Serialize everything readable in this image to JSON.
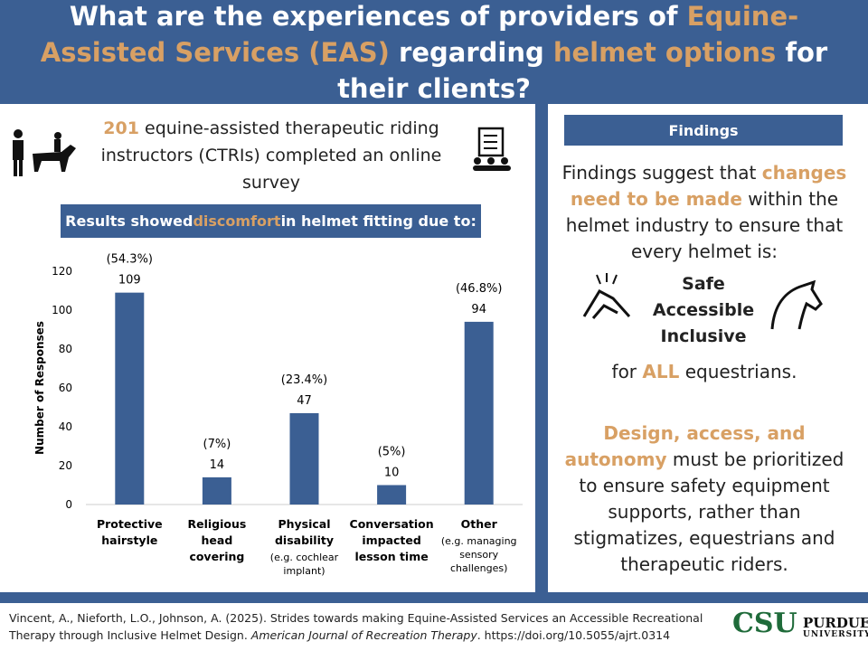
{
  "theme": {
    "primary_color": "#3b5f93",
    "accent_color": "#d8a064",
    "text_color": "#222222"
  },
  "header": {
    "title": {
      "segments": [
        {
          "text": "What are the experiences of providers of "
        },
        {
          "text": "Equine-Assisted Services (EAS)",
          "accent": true
        },
        {
          "text": " regarding "
        },
        {
          "text": "helmet options",
          "accent": true
        },
        {
          "text": " for their clients?"
        }
      ]
    }
  },
  "left_panel": {
    "intro": {
      "segments": [
        {
          "text": "201",
          "accent": true,
          "bold": true
        },
        {
          "text": " equine-assisted therapeutic riding instructors (CTRIs) completed an online survey"
        }
      ]
    },
    "banner": {
      "segments": [
        {
          "text": "Results showed "
        },
        {
          "text": "discomfort",
          "accent": true
        },
        {
          "text": " in helmet fitting due to:"
        }
      ]
    }
  },
  "chart_data": {
    "type": "bar",
    "y_label": "Number of Responses",
    "categories": [
      "Protective hairstyle",
      "Religious head covering",
      "Physical disability",
      "Conversation impacted lesson time",
      "Other"
    ],
    "category_notes": [
      null,
      null,
      "(e.g. cochlear implant)",
      null,
      "(e.g. managing sensory challenges)"
    ],
    "values": [
      109,
      14,
      47,
      10,
      94
    ],
    "percent_labels": [
      "(54.3%)",
      "(7%)",
      "(23.4%)",
      "(5%)",
      "(46.8%)"
    ],
    "color": "#3b5f93",
    "ylim": [
      0,
      120
    ],
    "yticks": [
      0,
      20,
      40,
      60,
      80,
      100,
      120
    ],
    "grid": false
  },
  "right_panel": {
    "heading": "Findings",
    "paragraph1": {
      "segments": [
        {
          "text": "Findings suggest that "
        },
        {
          "text": "changes need to be made",
          "accent": true,
          "bold": true
        },
        {
          "text": " within the helmet industry to ensure that every helmet is:"
        }
      ]
    },
    "qualities": [
      "Safe",
      "Accessible",
      "Inclusive"
    ],
    "paragraph2": {
      "segments": [
        {
          "text": "for "
        },
        {
          "text": "ALL",
          "accent": true,
          "bold": true
        },
        {
          "text": " equestrians."
        }
      ]
    },
    "paragraph3": {
      "segments": [
        {
          "text": "Design, access, and autonomy",
          "accent": true,
          "bold": true
        },
        {
          "text": " must be prioritized to ensure safety equipment supports, rather than stigmatizes, equestrians and therapeutic riders."
        }
      ]
    }
  },
  "footer": {
    "citation": {
      "segments": [
        {
          "text": "Vincent, A., Nieforth, L.O., Johnson, A. (2025). Strides towards making Equine-Assisted Services an Accessible Recreational Therapy through Inclusive Helmet Design. "
        },
        {
          "text": "American Journal of Recreation Therapy",
          "italic": true
        },
        {
          "text": ". https://doi.org/10.5055/ajrt.0314"
        }
      ]
    },
    "logo_left": "CSU",
    "logo_right": [
      "PURDUE",
      "UNIVERSITY"
    ]
  }
}
